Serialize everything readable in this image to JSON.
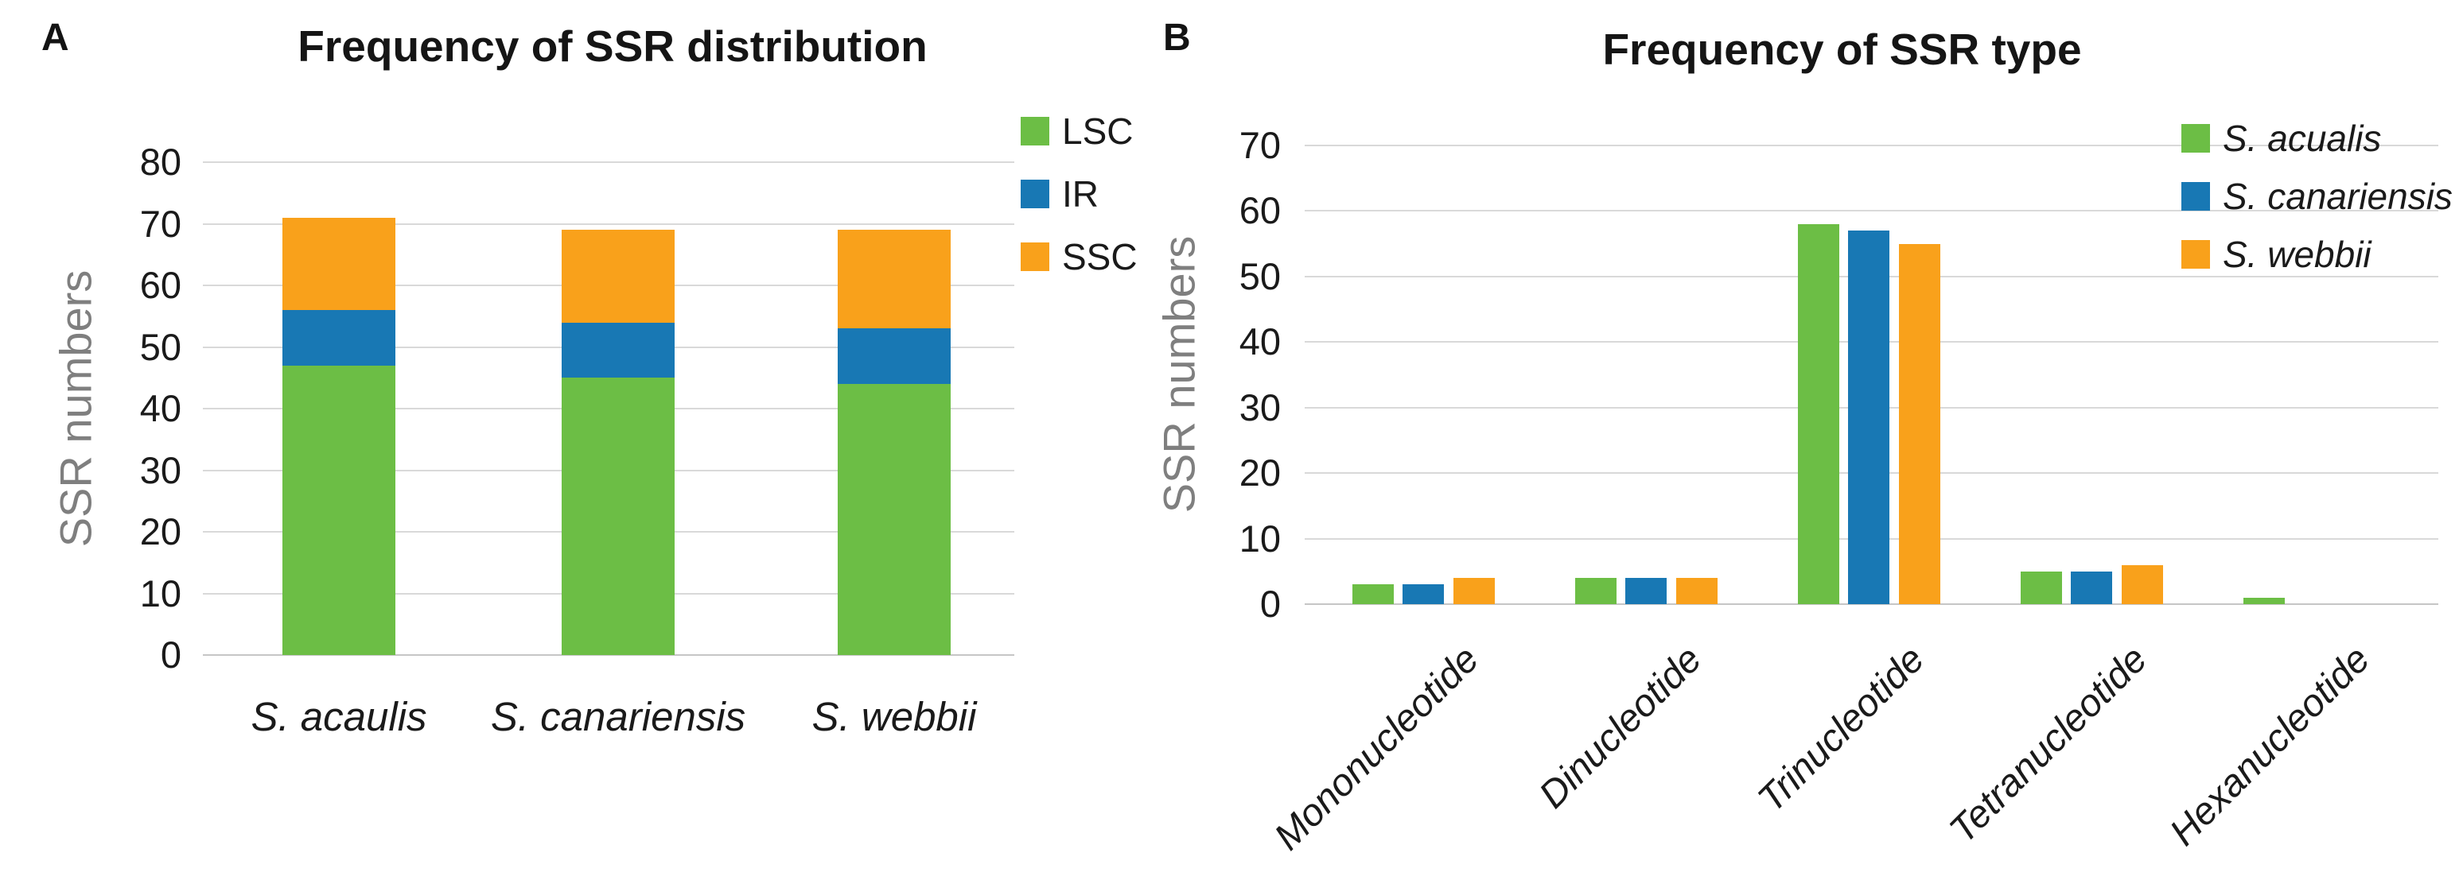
{
  "figure": {
    "panel_a_letter": "A",
    "panel_b_letter": "B"
  },
  "chart_data": [
    {
      "id": "frequency-of-ssr-distribution",
      "type": "bar",
      "stacked": true,
      "title": "Frequency of SSR distribution",
      "xlabel": "",
      "ylabel": "SSR numbers",
      "ylim": [
        0,
        80
      ],
      "ytick_step": 10,
      "grid": true,
      "legend_position": "right-outside",
      "categories": [
        "S. acaulis",
        "S. canariensis",
        "S. webbii"
      ],
      "series": [
        {
          "name": "LSC",
          "color": "#6CBE45",
          "values": [
            47,
            45,
            44
          ]
        },
        {
          "name": "IR",
          "color": "#1878B4",
          "values": [
            9,
            9,
            9
          ]
        },
        {
          "name": "SSC",
          "color": "#F9A11B",
          "values": [
            15,
            15,
            16
          ]
        }
      ],
      "bar_totals": [
        71,
        69,
        69
      ]
    },
    {
      "id": "frequency-of-ssr-type",
      "type": "bar",
      "stacked": false,
      "title": "Frequency of SSR type",
      "xlabel": "",
      "ylabel": "SSR numbers",
      "ylim": [
        0,
        70
      ],
      "ytick_step": 10,
      "grid": true,
      "legend_position": "right-inside",
      "categories": [
        "Mononucleotide",
        "Dinucleotide",
        "Trinucleotide",
        "Tetranucleotide",
        "Hexanucleotide"
      ],
      "series": [
        {
          "name": "S. acualis",
          "color": "#6CBE45",
          "values": [
            3,
            4,
            58,
            5,
            1
          ]
        },
        {
          "name": "S. canariensis",
          "color": "#1878B4",
          "values": [
            3,
            4,
            57,
            5,
            0
          ]
        },
        {
          "name": "S. webbii",
          "color": "#F9A11B",
          "values": [
            4,
            4,
            55,
            6,
            0
          ]
        }
      ]
    }
  ],
  "style_colors": {
    "gridline": "#D9D9D9",
    "axis_line": "#C6C6C6",
    "axis_label_gray": "#7F7F7F"
  }
}
